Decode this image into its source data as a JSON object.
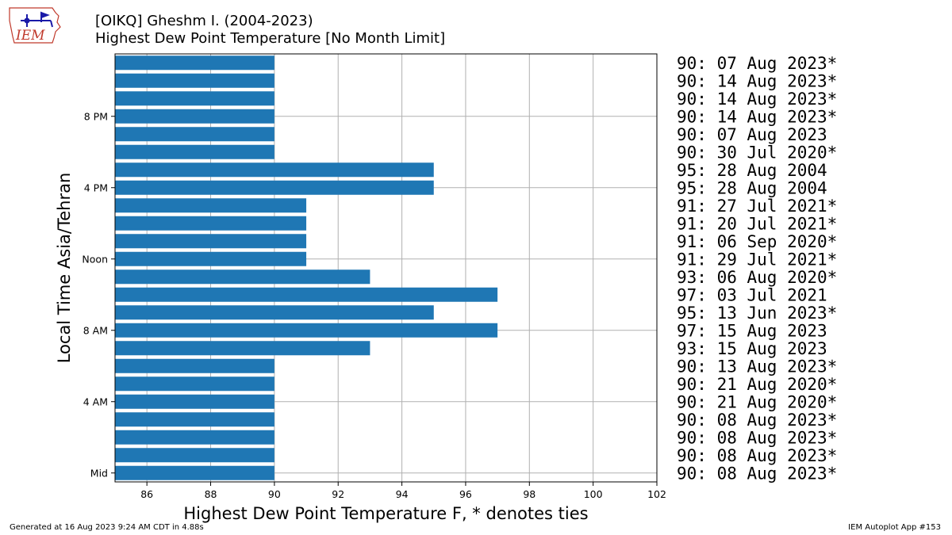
{
  "header": {
    "title_line1": "[OIKQ] Gheshm I. (2004-2023)",
    "title_line2": "Highest Dew Point Temperature [No Month Limit]"
  },
  "logo": {
    "text": "IEM",
    "icon": "iowa-state-outline-weather-station-logo"
  },
  "footer": {
    "generated": "Generated at 16 Aug 2023 9:24 AM CDT in 4.88s",
    "app": "IEM Autoplot App #153"
  },
  "chart_data": {
    "type": "bar",
    "orientation": "horizontal",
    "xlabel": "Highest Dew Point Temperature F, * denotes ties",
    "ylabel": "Local Time Asia/Tehran",
    "xlim": [
      85,
      102
    ],
    "ylim": [
      -0.5,
      23.5
    ],
    "xticks": [
      86,
      88,
      90,
      92,
      94,
      96,
      98,
      100,
      102
    ],
    "yticks": [
      {
        "hour": 0,
        "label": "Mid"
      },
      {
        "hour": 4,
        "label": "4 AM"
      },
      {
        "hour": 8,
        "label": "8 AM"
      },
      {
        "hour": 12,
        "label": "Noon"
      },
      {
        "hour": 16,
        "label": "4 PM"
      },
      {
        "hour": 20,
        "label": "8 PM"
      }
    ],
    "grid": true,
    "bar_color": "#1f77b4",
    "hours": [
      0,
      1,
      2,
      3,
      4,
      5,
      6,
      7,
      8,
      9,
      10,
      11,
      12,
      13,
      14,
      15,
      16,
      17,
      18,
      19,
      20,
      21,
      22,
      23
    ],
    "values": [
      90,
      90,
      90,
      90,
      90,
      90,
      90,
      93,
      97,
      95,
      97,
      93,
      91,
      91,
      91,
      91,
      95,
      95,
      90,
      90,
      90,
      90,
      90,
      90
    ],
    "labels": [
      "90: 08 Aug 2023*",
      "90: 08 Aug 2023*",
      "90: 08 Aug 2023*",
      "90: 08 Aug 2023*",
      "90: 21 Aug 2020*",
      "90: 21 Aug 2020*",
      "90: 13 Aug 2023*",
      "93: 15 Aug 2023",
      "97: 15 Aug 2023",
      "95: 13 Jun 2023*",
      "97: 03 Jul 2021",
      "93: 06 Aug 2020*",
      "91: 29 Jul 2021*",
      "91: 06 Sep 2020*",
      "91: 20 Jul 2021*",
      "91: 27 Jul 2021*",
      "95: 28 Aug 2004",
      "95: 28 Aug 2004",
      "90: 30 Jul 2020*",
      "90: 07 Aug 2023",
      "90: 14 Aug 2023*",
      "90: 14 Aug 2023*",
      "90: 14 Aug 2023*",
      "90: 07 Aug 2023*"
    ]
  }
}
